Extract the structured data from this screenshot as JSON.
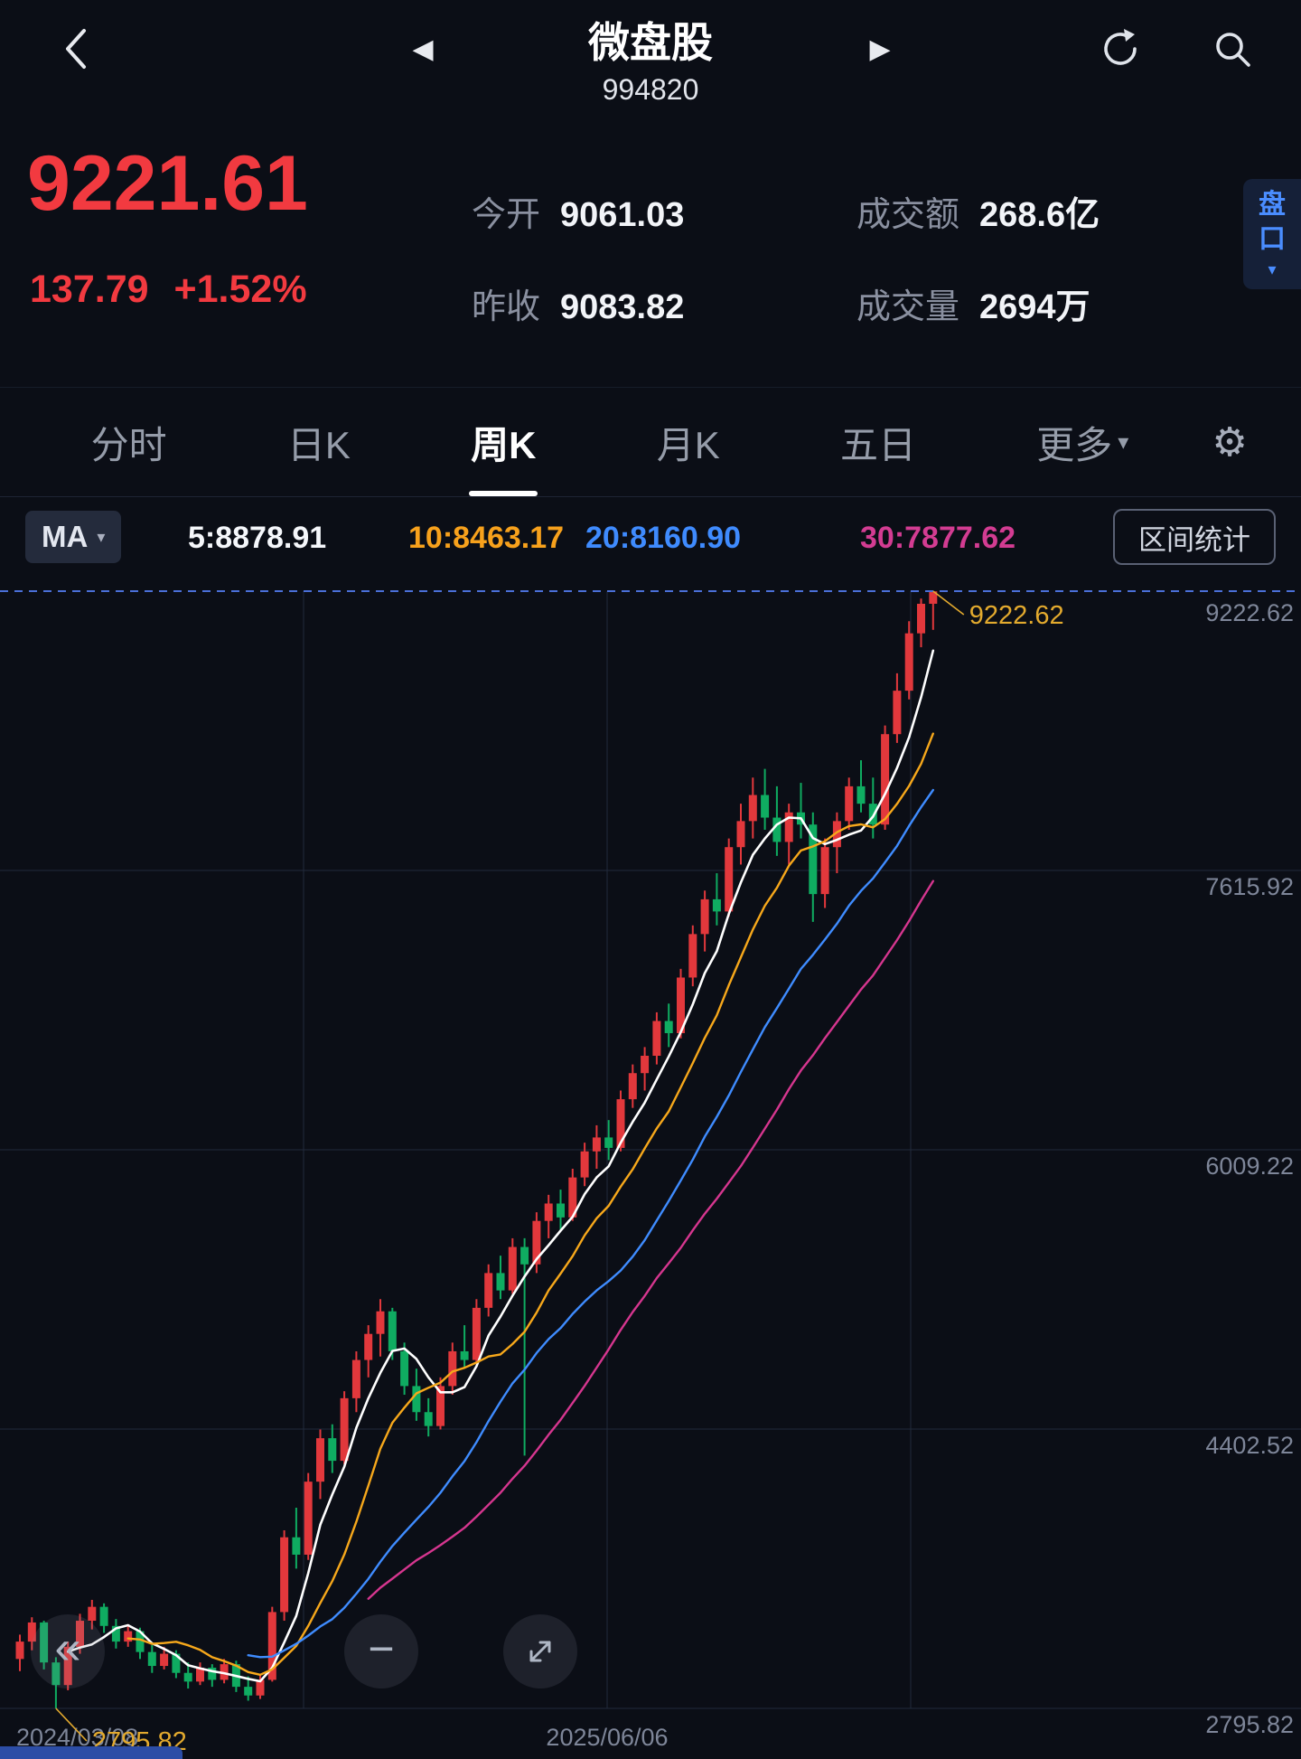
{
  "header": {
    "title": "微盘股",
    "code": "994820"
  },
  "icons": {
    "prev": "◀",
    "next": "▶",
    "more_caret": "▾",
    "ma_caret": "▾",
    "pankou_caret": "▾",
    "pan_left": "«",
    "zoom_out": "−",
    "gear": "⚙"
  },
  "quote": {
    "price": "9221.61",
    "change": "137.79",
    "change_pct": "+1.52%",
    "open_label": "今开",
    "open": "9061.03",
    "prev_close_label": "昨收",
    "prev_close": "9083.82",
    "turnover_label": "成交额",
    "turnover": "268.6亿",
    "volume_label": "成交量",
    "volume": "2694万",
    "pankou_label_1": "盘",
    "pankou_label_2": "口",
    "up_color": "#f23a40"
  },
  "tabs": [
    {
      "label": "分时"
    },
    {
      "label": "日K"
    },
    {
      "label": "周K"
    },
    {
      "label": "月K"
    },
    {
      "label": "五日"
    },
    {
      "label": "更多"
    }
  ],
  "active_tab": "周K",
  "ma_bar": {
    "selector": "MA",
    "ma5": "5:8878.91",
    "ma10": "10:8463.17",
    "ma20": "20:8160.90",
    "ma30": "30:7877.62",
    "range_button": "区间统计"
  },
  "chart_data": {
    "type": "candlestick",
    "title": "微盘股 994820 周K",
    "x_labels": [
      "2024/03/08",
      "2025/06/06"
    ],
    "y_ticks": [
      9222.62,
      7615.92,
      6009.22,
      4402.52,
      2795.82
    ],
    "y_range": [
      2795.82,
      9222.62
    ],
    "high_annotation": "9222.62",
    "low_annotation": "2795.82",
    "legend": [
      "MA5",
      "MA10",
      "MA20",
      "MA30"
    ],
    "colors": {
      "up": "#e2383c",
      "down": "#0fac61",
      "ma5": "#ffffff",
      "ma10": "#f7a81b",
      "ma20": "#3f8cff",
      "ma30": "#d6368f",
      "grid": "#222a3c",
      "dashed": "#4a6fd8",
      "axis_text": "#7e8699",
      "annotation": "#e3aa2e"
    },
    "candles": [
      [
        3080,
        3220,
        3010,
        3180
      ],
      [
        3180,
        3320,
        3130,
        3290
      ],
      [
        3290,
        3300,
        3020,
        3060
      ],
      [
        3060,
        3090,
        2795.82,
        2930
      ],
      [
        2930,
        3180,
        2900,
        3150
      ],
      [
        3150,
        3340,
        3110,
        3300
      ],
      [
        3300,
        3420,
        3250,
        3380
      ],
      [
        3380,
        3400,
        3230,
        3270
      ],
      [
        3270,
        3310,
        3140,
        3180
      ],
      [
        3180,
        3280,
        3150,
        3240
      ],
      [
        3240,
        3260,
        3080,
        3120
      ],
      [
        3120,
        3160,
        3000,
        3040
      ],
      [
        3040,
        3150,
        3020,
        3110
      ],
      [
        3110,
        3130,
        2970,
        3000
      ],
      [
        3000,
        3060,
        2910,
        2950
      ],
      [
        2950,
        3060,
        2930,
        3030
      ],
      [
        3030,
        3050,
        2920,
        2960
      ],
      [
        2960,
        3080,
        2940,
        3050
      ],
      [
        3050,
        3070,
        2890,
        2920
      ],
      [
        2920,
        2980,
        2840,
        2870
      ],
      [
        2870,
        2990,
        2850,
        2960
      ],
      [
        2960,
        3380,
        2950,
        3350
      ],
      [
        3350,
        3820,
        3300,
        3780
      ],
      [
        3780,
        3950,
        3600,
        3680
      ],
      [
        3680,
        4150,
        3650,
        4100
      ],
      [
        4100,
        4400,
        4000,
        4350
      ],
      [
        4350,
        4430,
        4150,
        4220
      ],
      [
        4220,
        4620,
        4200,
        4580
      ],
      [
        4580,
        4850,
        4500,
        4800
      ],
      [
        4800,
        5000,
        4700,
        4950
      ],
      [
        4950,
        5150,
        4820,
        5080
      ],
      [
        5080,
        5100,
        4800,
        4850
      ],
      [
        4850,
        4900,
        4600,
        4650
      ],
      [
        4650,
        4750,
        4450,
        4500
      ],
      [
        4500,
        4580,
        4360,
        4420
      ],
      [
        4420,
        4700,
        4400,
        4650
      ],
      [
        4650,
        4900,
        4600,
        4850
      ],
      [
        4850,
        5000,
        4750,
        4800
      ],
      [
        4800,
        5150,
        4780,
        5100
      ],
      [
        5100,
        5350,
        5050,
        5300
      ],
      [
        5300,
        5400,
        5150,
        5200
      ],
      [
        5200,
        5500,
        5180,
        5450
      ],
      [
        5450,
        5500,
        4250,
        5350
      ],
      [
        5350,
        5650,
        5300,
        5600
      ],
      [
        5600,
        5750,
        5500,
        5700
      ],
      [
        5700,
        5780,
        5550,
        5620
      ],
      [
        5620,
        5900,
        5600,
        5850
      ],
      [
        5850,
        6050,
        5800,
        6000
      ],
      [
        6000,
        6150,
        5900,
        6080
      ],
      [
        6080,
        6180,
        5950,
        6020
      ],
      [
        6020,
        6350,
        6000,
        6300
      ],
      [
        6300,
        6500,
        6250,
        6450
      ],
      [
        6450,
        6600,
        6350,
        6550
      ],
      [
        6550,
        6800,
        6500,
        6750
      ],
      [
        6750,
        6850,
        6600,
        6680
      ],
      [
        6680,
        7050,
        6650,
        7000
      ],
      [
        7000,
        7300,
        6950,
        7250
      ],
      [
        7250,
        7500,
        7150,
        7450
      ],
      [
        7450,
        7600,
        7300,
        7380
      ],
      [
        7380,
        7800,
        7350,
        7750
      ],
      [
        7750,
        8000,
        7650,
        7900
      ],
      [
        7900,
        8150,
        7800,
        8050
      ],
      [
        8050,
        8200,
        7850,
        7920
      ],
      [
        7920,
        8100,
        7700,
        7780
      ],
      [
        7780,
        8000,
        7650,
        7950
      ],
      [
        7950,
        8120,
        7800,
        7880
      ],
      [
        7880,
        7950,
        7320,
        7480
      ],
      [
        7480,
        7800,
        7400,
        7750
      ],
      [
        7750,
        7950,
        7600,
        7900
      ],
      [
        7900,
        8150,
        7850,
        8100
      ],
      [
        8100,
        8250,
        7950,
        8000
      ],
      [
        8000,
        8150,
        7800,
        7880
      ],
      [
        7880,
        8450,
        7850,
        8400
      ],
      [
        8400,
        8750,
        8350,
        8650
      ],
      [
        8650,
        9050,
        8600,
        8980
      ],
      [
        8980,
        9180,
        8900,
        9150
      ],
      [
        9150,
        9222.62,
        9000,
        9221.61
      ]
    ]
  },
  "controls": {
    "pan_left": "pan-left",
    "zoom_out": "zoom-out",
    "fullscreen": "fullscreen"
  }
}
